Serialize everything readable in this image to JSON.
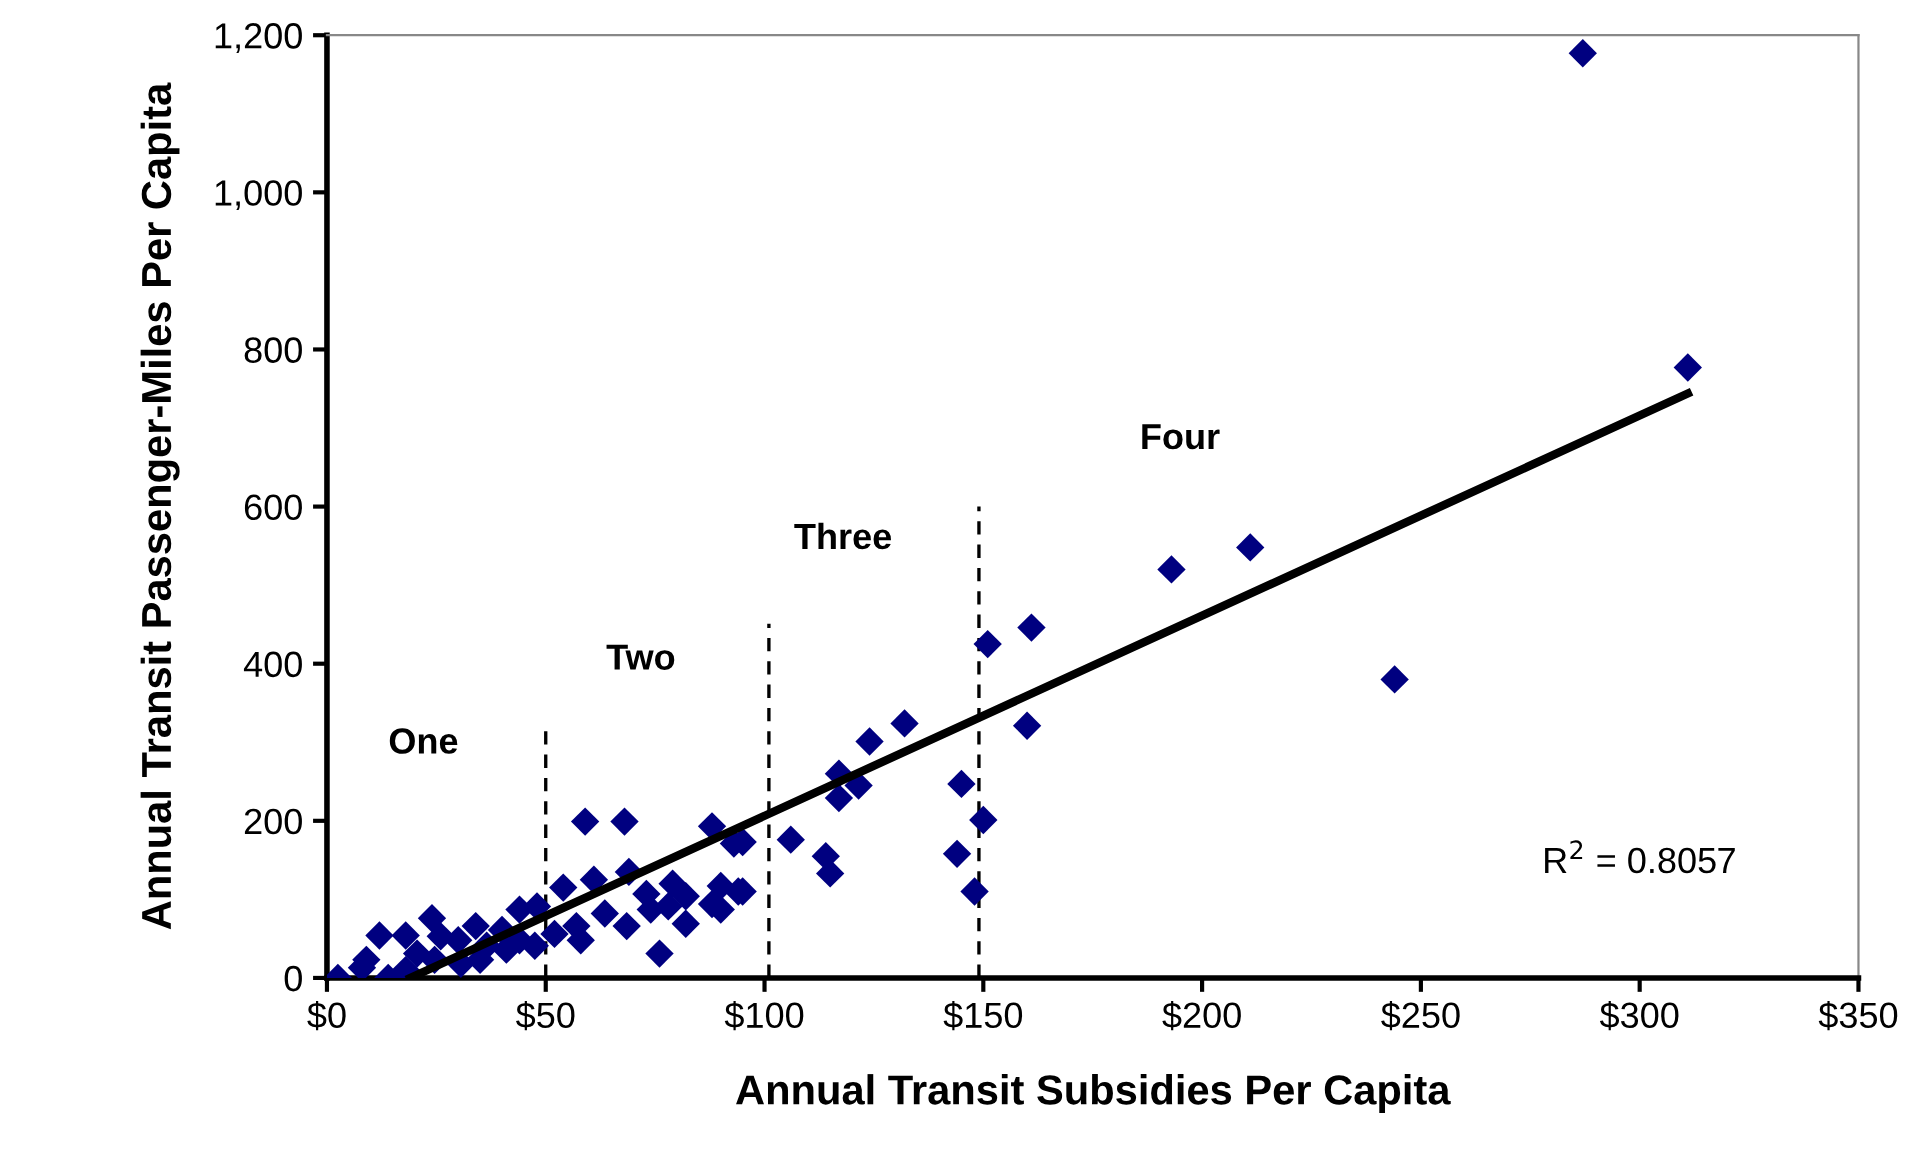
{
  "chart_data": {
    "type": "scatter",
    "xlabel": "Annual Transit Subsidies Per Capita",
    "ylabel": "Annual Transit Passenger-Miles Per Capita",
    "xlim": [
      0,
      350
    ],
    "ylim": [
      0,
      1200
    ],
    "xticks": [
      {
        "value": 0,
        "label": "$0"
      },
      {
        "value": 50,
        "label": "$50"
      },
      {
        "value": 100,
        "label": "$100"
      },
      {
        "value": 150,
        "label": "$150"
      },
      {
        "value": 200,
        "label": "$200"
      },
      {
        "value": 250,
        "label": "$250"
      },
      {
        "value": 300,
        "label": "$300"
      },
      {
        "value": 350,
        "label": "$350"
      }
    ],
    "yticks": [
      0,
      200,
      400,
      600,
      800,
      {
        "value": 1000,
        "label": "1,000"
      },
      {
        "value": 1200,
        "label": "1,200"
      }
    ],
    "grid": false,
    "legend": false,
    "series": [
      {
        "marker": "diamond",
        "color": "#000080",
        "x": [
          287,
          311,
          244,
          193,
          211,
          151,
          161,
          160,
          132,
          124,
          117,
          121.5,
          117,
          145,
          150,
          144,
          148,
          106,
          114,
          115,
          95,
          95,
          59,
          68,
          88,
          93,
          76,
          69,
          54,
          61,
          73,
          79,
          82,
          90,
          94,
          88,
          74,
          68.5,
          63.5,
          57,
          58,
          52,
          82,
          90,
          78,
          2.5,
          8,
          12,
          18,
          24,
          30,
          34,
          40,
          44,
          48,
          47.5,
          35,
          24.6,
          18,
          14,
          9,
          26,
          41,
          30.6,
          36.5,
          20.6,
          44
        ],
        "values": [
          1177,
          777,
          380,
          520,
          548,
          425,
          446,
          321,
          324,
          301,
          260,
          245,
          229,
          247,
          201,
          158,
          110,
          176,
          155,
          133,
          173,
          110,
          199,
          199,
          193,
          171,
          31,
          135,
          115,
          125,
          107,
          120,
          104,
          117,
          110,
          94,
          87,
          66,
          82,
          66,
          48,
          56,
          69,
          87,
          91,
          0,
          13,
          54,
          54,
          76,
          48,
          66,
          61,
          87,
          91,
          41,
          23,
          23,
          10,
          0,
          23,
          53,
          36,
          18,
          41,
          31,
          48
        ]
      },
      {
        "type": "line",
        "marker": "none",
        "color": "#000000",
        "line_style": "solid",
        "x": [
          19,
          311
        ],
        "values": [
          0,
          744
        ]
      },
      {
        "type": "line",
        "marker": "none",
        "color": "#000000",
        "line_style": "dashed",
        "x": [
          50,
          50
        ],
        "values": [
          0,
          316
        ]
      },
      {
        "type": "line",
        "marker": "none",
        "color": "#000000",
        "line_style": "dashed",
        "x": [
          101,
          101
        ],
        "values": [
          0,
          451
        ]
      },
      {
        "type": "line",
        "marker": "none",
        "color": "#000000",
        "line_style": "dashed",
        "x": [
          149,
          149
        ],
        "values": [
          0,
          600
        ]
      }
    ],
    "annotations": [
      "One",
      "Two",
      "Three",
      "Four",
      "R$^{2}$ = 0.8057"
    ]
  }
}
